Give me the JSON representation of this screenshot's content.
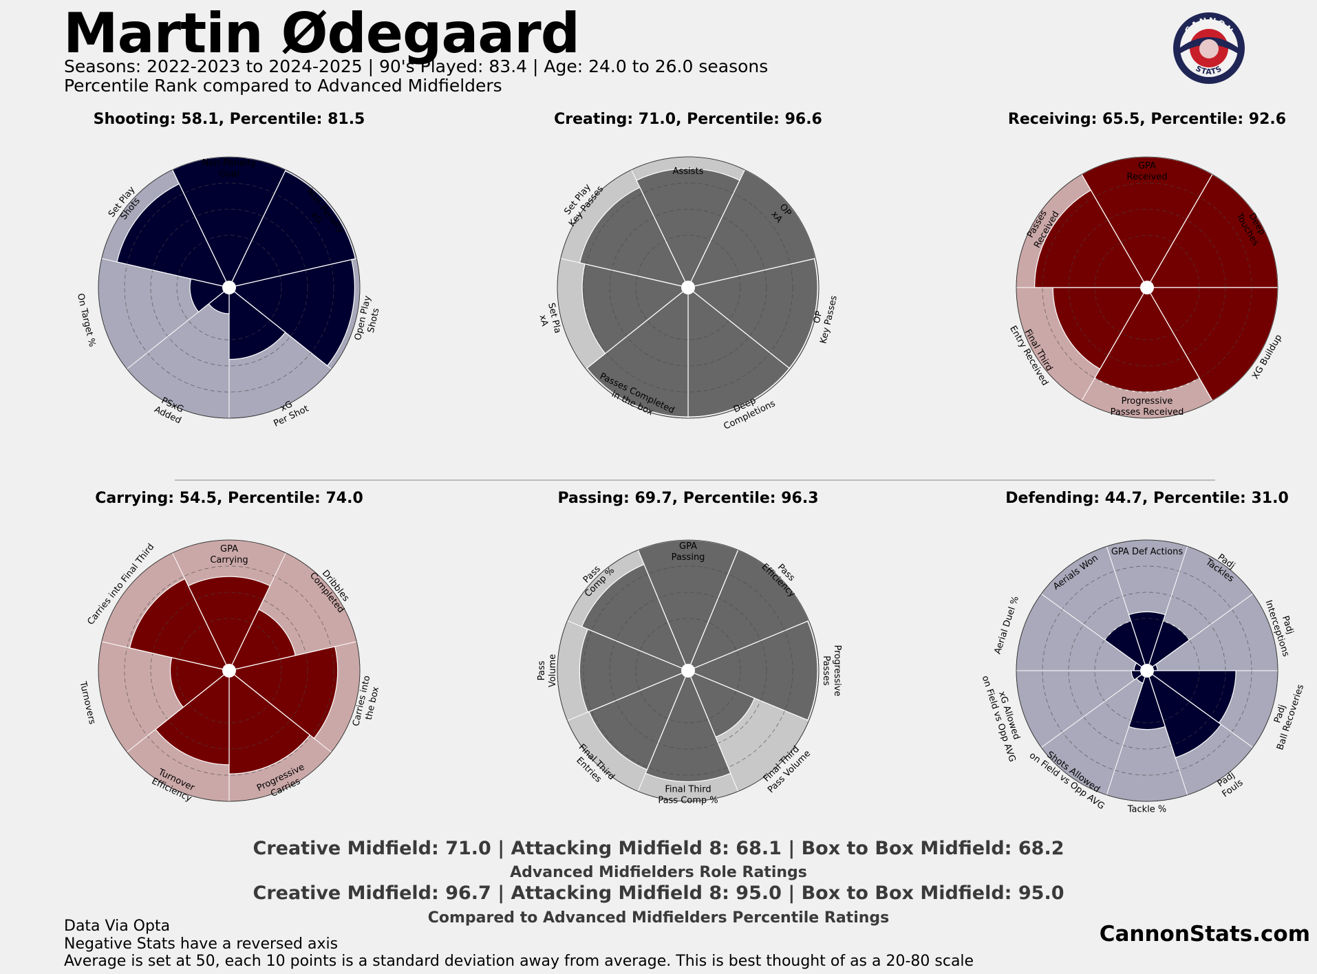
{
  "header": {
    "title": "Martin Ødegaard",
    "subtitle1": "Seasons: 2022-2023 to 2024-2025 | 90's Played: 83.4 | Age: 24.0 to 26.0 seasons",
    "subtitle2": "Percentile Rank compared to Advanced Midfielders",
    "logo_top": "CANNON",
    "logo_bottom": "STATS"
  },
  "ratings": {
    "line1": "Creative Midfield: 71.0 | Attacking Midfield 8: 68.1 | Box to Box Midfield: 68.2",
    "line2": "Advanced Midfielders Role Ratings",
    "line3": "Creative Midfield: 96.7 | Attacking Midfield 8: 95.0 | Box to Box Midfield: 95.0",
    "line4": "Compared to Advanced Midfielders Percentile Ratings"
  },
  "footer": {
    "line1": "Data Via Opta",
    "line2": "Negative Stats have a reversed axis",
    "line3": "Average is set at 50, each 10 points is a standard deviation away from average. This is best thought of as a 20-80 scale",
    "site": "CannonStats.com"
  },
  "colors": {
    "navy": "#000030",
    "navy_bg": "#a9a9bb",
    "red": "#730000",
    "red_bg": "#cba8a8",
    "gray": "#676767",
    "gray_bg": "#c8c8c8"
  },
  "chart_data": [
    {
      "type": "polar-bar",
      "title": "Shooting: 58.1, Percentile: 81.5",
      "rlim": [
        0,
        100
      ],
      "theme": "navy",
      "categories": [
        "Non-Penalty\nGoal",
        "Non-Penalty\nxG",
        "Open Play\nShots",
        "xG\nPer Shot",
        "PSxG\nAdded",
        "On Target %",
        "Set Play\nShots"
      ],
      "values": [
        100,
        99,
        96,
        55,
        20,
        30,
        88
      ],
      "label_r": [
        91,
        90,
        109,
        105,
        104,
        112,
        101
      ]
    },
    {
      "type": "polar-bar",
      "title": "Creating: 71.0, Percentile: 96.6",
      "rlim": [
        0,
        100
      ],
      "theme": "gray",
      "categories": [
        "Assists",
        "OP\nxA",
        "OP\nKey Passes",
        "Deep\nCompletions",
        "Passes Completed\nin the box",
        "Set Pla\nxA",
        "Set Play\nKey Passes"
      ],
      "values": [
        91,
        100,
        99,
        99,
        99,
        81,
        85
      ],
      "label_r": [
        89,
        91,
        106,
        104,
        94,
        109,
        104
      ]
    },
    {
      "type": "polar-bar",
      "title": "Receiving: 65.5, Percentile: 92.6",
      "rlim": [
        0,
        100
      ],
      "theme": "red",
      "categories": [
        "GPA\nReceived",
        "Deep\nTouches",
        "XG Buildup",
        "Progressive\nPasses Received",
        "Final Third\nEntry Received",
        "Passes\nReceived"
      ],
      "values": [
        100,
        100,
        100,
        80,
        72,
        86
      ],
      "label_r": [
        89,
        93,
        106,
        91,
        100,
        93
      ]
    },
    {
      "type": "polar-bar",
      "title": "Carrying: 54.5, Percentile: 74.0",
      "rlim": [
        0,
        100
      ],
      "theme": "red",
      "categories": [
        "GPA\nCarrying",
        "Dribbles\nCompleted",
        "Carries into\nthe box",
        "Progressive\nCarries",
        "Turnover\nEfficiency",
        "Turnovers",
        "Carries into Final Third"
      ],
      "values": [
        72,
        52,
        83,
        79,
        72,
        45,
        78
      ],
      "label_r": [
        89,
        100,
        108,
        95,
        97,
        111,
        106
      ]
    },
    {
      "type": "polar-bar",
      "title": "Passing: 69.7, Percentile: 96.3",
      "rlim": [
        0,
        100
      ],
      "theme": "gray",
      "categories": [
        "GPA\nPassing",
        "Pass\nEfficiency",
        "Progressive\nPasses",
        "Final Third\nPass Volume",
        "Final Third\nPass Comp %",
        "Final Third\nEntries",
        "Pass\nVolume",
        "Pass\nComp %"
      ],
      "values": [
        100,
        100,
        99,
        55,
        85,
        82,
        83,
        88
      ],
      "label_r": [
        91,
        102,
        110,
        105,
        95,
        103,
        108,
        100
      ]
    },
    {
      "type": "polar-bar",
      "title": "Defending: 44.7, Percentile: 31.0",
      "rlim": [
        0,
        100
      ],
      "theme": "navy",
      "categories": [
        "GPA Def Actions",
        "Padj\nTackles",
        "Padj\nInterceptions",
        "Padj\nBall Recoveries",
        "Padj\nFouls",
        "Tackle %",
        "Shots Allowed\non Field vs Opp AVG",
        "xG Allowed\non Field vs Opp AVG",
        "Aerial Duel %",
        "Aerials Won"
      ],
      "values": [
        45,
        40,
        8,
        68,
        70,
        45,
        10,
        12,
        10,
        40
      ],
      "label_r": [
        91,
        99,
        109,
        111,
        107,
        106,
        100,
        115,
        113,
        93
      ]
    }
  ]
}
